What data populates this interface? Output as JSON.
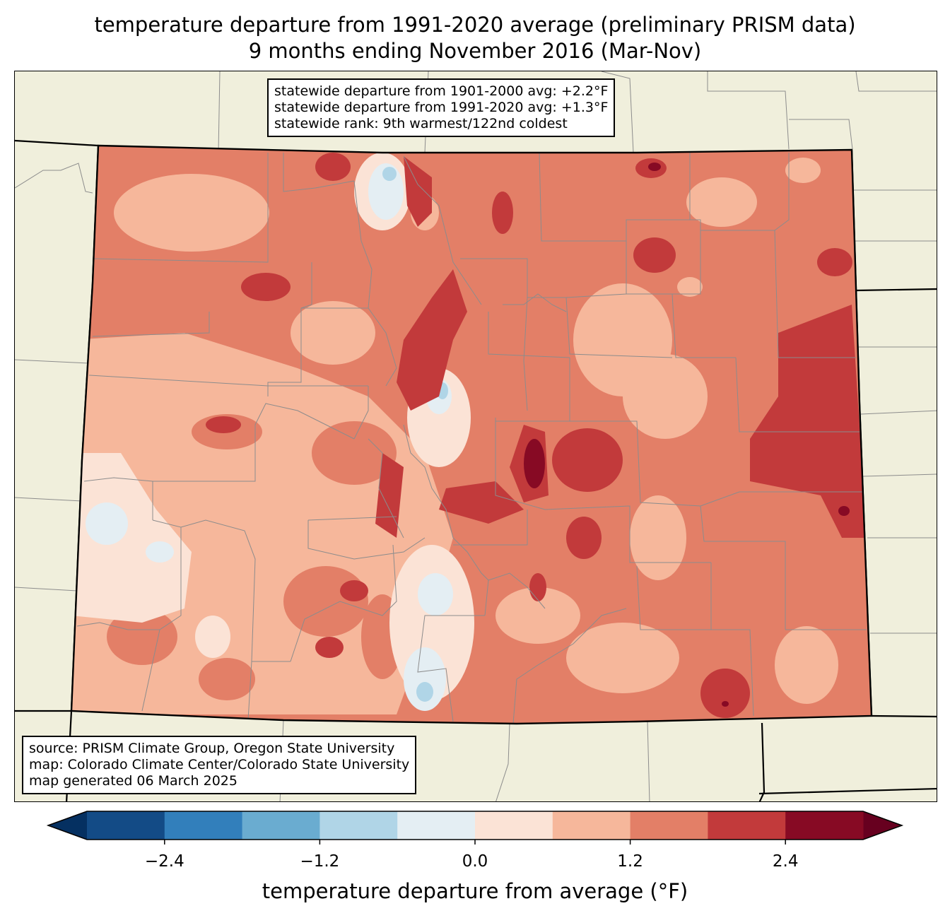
{
  "title": {
    "line1": "temperature departure from 1991-2020 average (preliminary PRISM data)",
    "line2": "9 months ending November 2016 (Mar-Nov)"
  },
  "stats_box": {
    "line1": "statewide departure from 1901-2000 avg: +2.2°F",
    "line2": "statewide departure from 1991-2020 avg: +1.3°F",
    "line3": "statewide rank: 9th warmest/122nd coldest"
  },
  "source_box": {
    "line1": "source: PRISM Climate Group, Oregon State University",
    "line2": "map: Colorado Climate Center/Colorado State University",
    "line3": "map generated 06 March 2025"
  },
  "colorbar": {
    "label": "temperature departure from average (°F)",
    "levels": [
      -3.0,
      -2.4,
      -1.8,
      -1.2,
      -0.6,
      0.0,
      0.6,
      1.2,
      1.8,
      2.4,
      3.0
    ],
    "colors": [
      "#134b86",
      "#327fbb",
      "#6aacd0",
      "#b0d5e7",
      "#e4eef3",
      "#fbe3d6",
      "#f6b79b",
      "#e37f67",
      "#c23a3b",
      "#870a24"
    ],
    "under_color": "#053061",
    "over_color": "#67001f",
    "ticks": [
      -2.4,
      -1.2,
      0.0,
      1.2,
      2.4
    ],
    "tick_labels": [
      "−2.4",
      "−1.2",
      "0.0",
      "1.2",
      "2.4"
    ]
  },
  "map": {
    "land_color": "#f0efdc",
    "base_color": "#e37f67"
  }
}
